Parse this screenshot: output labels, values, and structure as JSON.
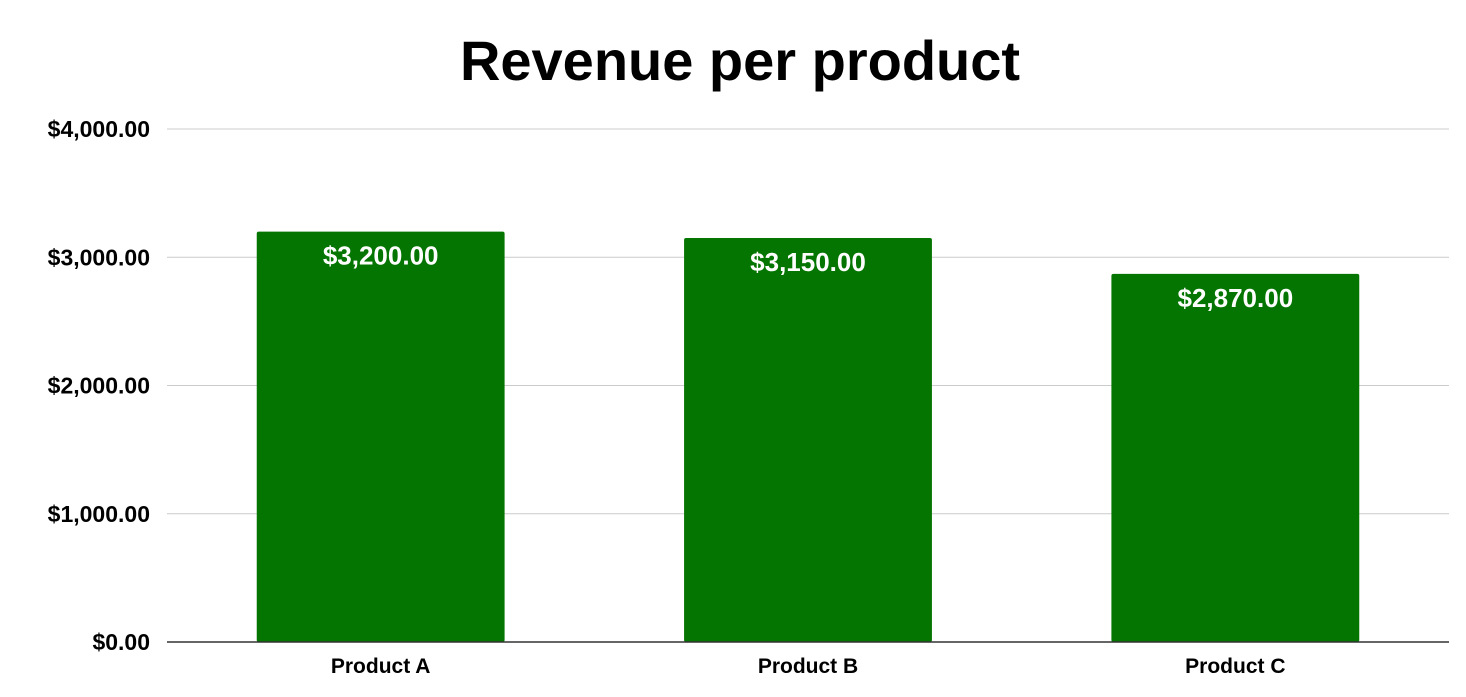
{
  "chart_data": {
    "type": "bar",
    "title": "Revenue per product",
    "xlabel": "",
    "ylabel": "",
    "categories": [
      "Product A",
      "Product B",
      "Product C"
    ],
    "values": [
      3200,
      3150,
      2870
    ],
    "data_labels": [
      "$3,200.00",
      "$3,150.00",
      "$2,870.00"
    ],
    "ylim": [
      0,
      4000
    ],
    "yticks": [
      0,
      1000,
      2000,
      3000,
      4000
    ],
    "ytick_labels": [
      "$0.00",
      "$1,000.00",
      "$2,000.00",
      "$3,000.00",
      "$4,000.00"
    ],
    "grid": true,
    "legend": "none",
    "bar_color": "#057502"
  }
}
